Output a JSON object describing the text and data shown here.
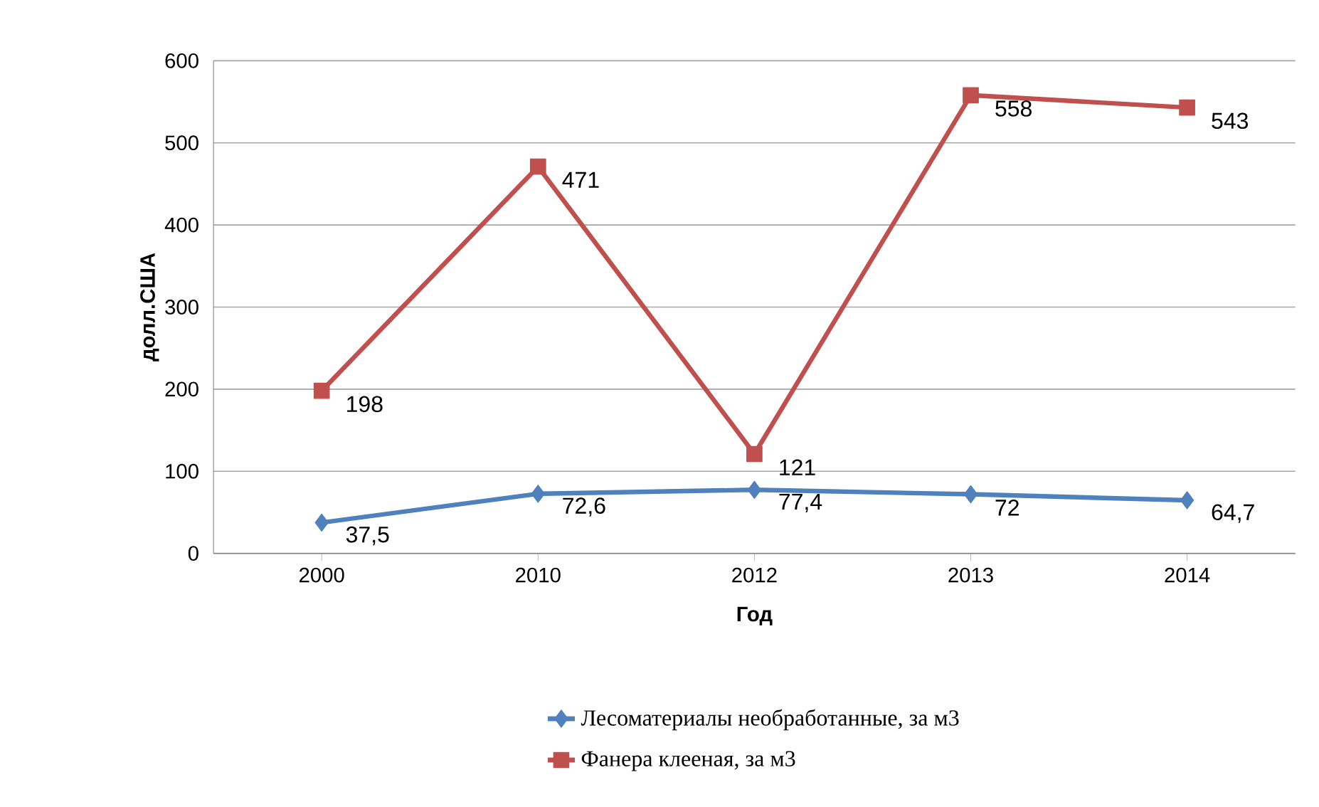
{
  "chart_data": {
    "type": "line",
    "xlabel": "Год",
    "ylabel": "долл.США",
    "categories": [
      "2000",
      "2010",
      "2012",
      "2013",
      "2014"
    ],
    "series": [
      {
        "name": "Лесоматериалы необработанные, за м3",
        "color": "#4f81bd",
        "marker": "diamond",
        "values": [
          37.5,
          72.6,
          77.4,
          72,
          64.7
        ],
        "value_labels": [
          "37,5",
          "72,6",
          "77,4",
          "72",
          "64,7"
        ]
      },
      {
        "name": "Фанера клееная, за м3",
        "color": "#c0504d",
        "marker": "square",
        "values": [
          198,
          471,
          121,
          558,
          543
        ],
        "value_labels": [
          "198",
          "471",
          "121",
          "558",
          "543"
        ]
      }
    ],
    "ylim": [
      0,
      600
    ],
    "yticks": [
      0,
      100,
      200,
      300,
      400,
      500,
      600
    ],
    "grid": "y",
    "legend": "bottom"
  }
}
